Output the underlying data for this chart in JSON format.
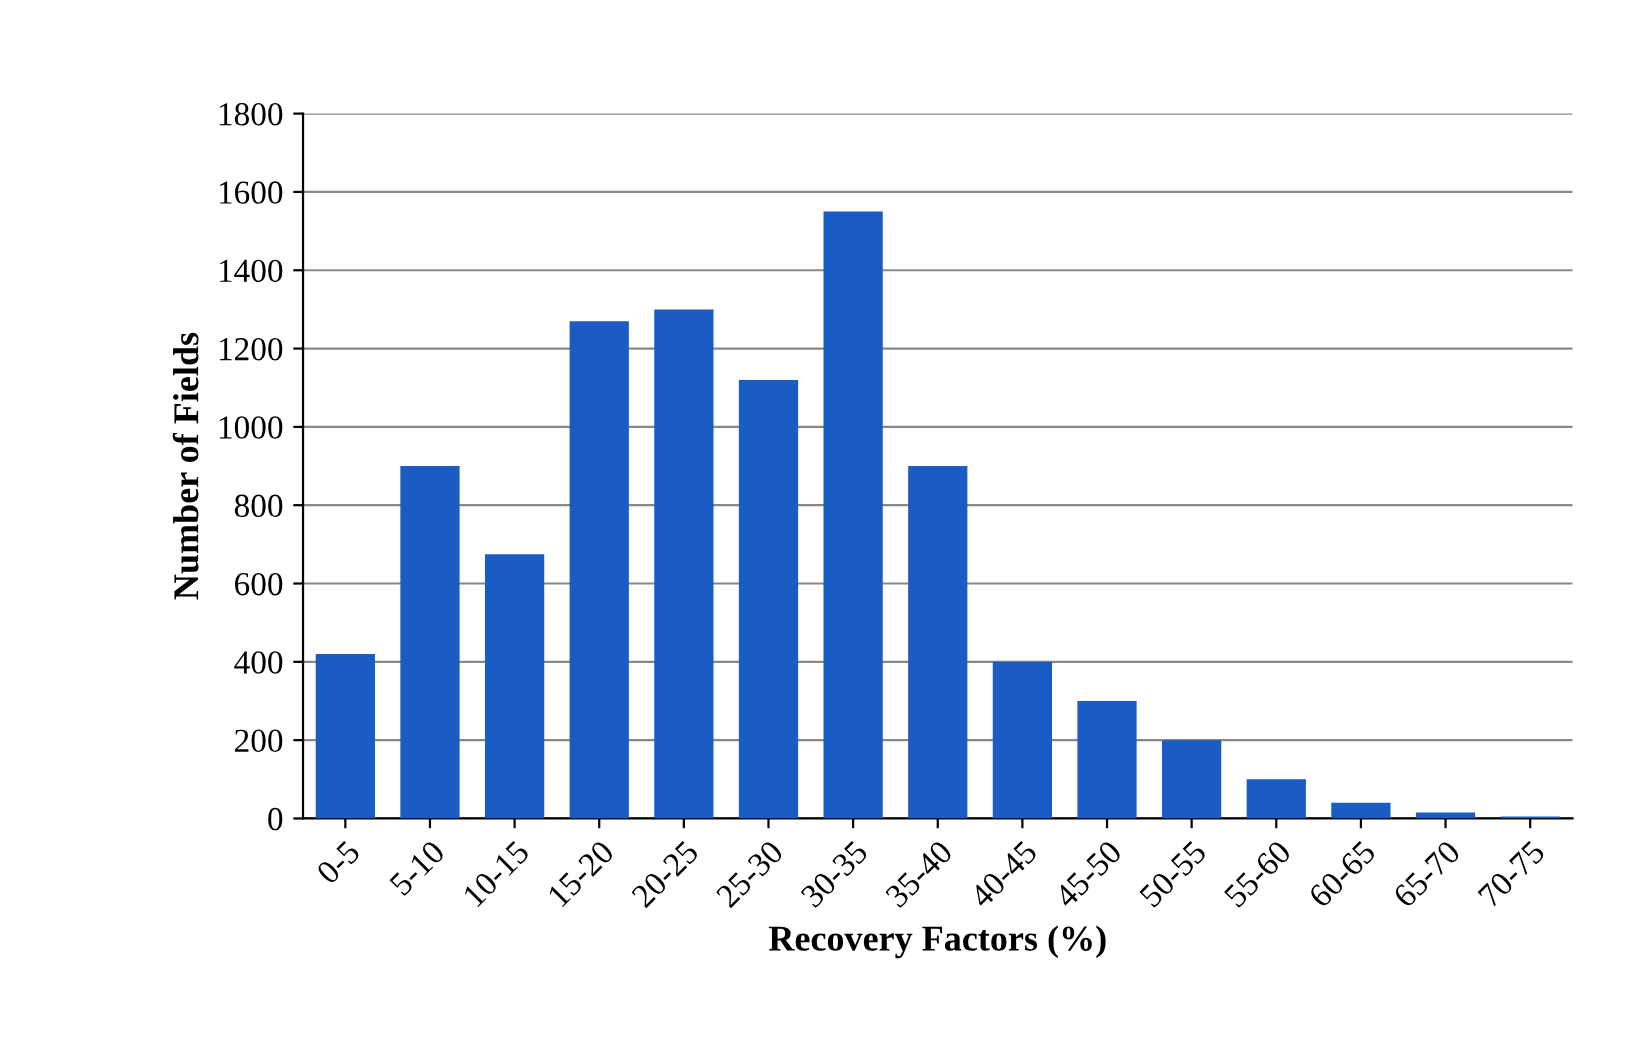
{
  "chart_data": {
    "type": "bar",
    "xlabel": "Recovery Factors (%)",
    "ylabel": "Number of Fields",
    "categories": [
      "0-5",
      "5-10",
      "10-15",
      "15-20",
      "20-25",
      "25-30",
      "30-35",
      "35-40",
      "40-45",
      "45-50",
      "50-55",
      "55-60",
      "60-65",
      "65-70",
      "70-75"
    ],
    "values": [
      420,
      900,
      675,
      1270,
      1300,
      1120,
      1550,
      900,
      400,
      300,
      200,
      100,
      40,
      15,
      5
    ],
    "color": "#1a5cc4",
    "ylim": [
      0,
      1800
    ],
    "yticks": [
      0,
      200,
      400,
      600,
      800,
      1000,
      1200,
      1400,
      1600,
      1800
    ],
    "grid": "y",
    "legend": false
  }
}
